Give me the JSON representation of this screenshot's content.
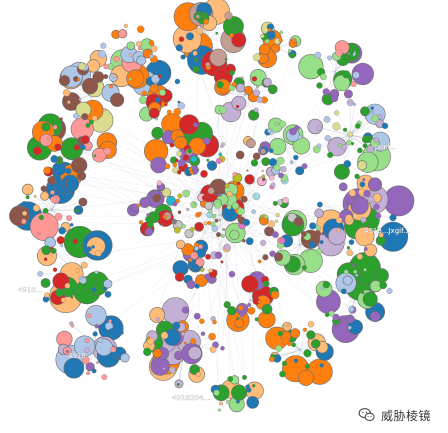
{
  "graph": {
    "description_colors": {
      "palette": [
        "#1f77b4",
        "#aec7e8",
        "#ff7f0e",
        "#ffbb78",
        "#2ca02c",
        "#98df8a",
        "#d62728",
        "#ff9896",
        "#9467bd",
        "#c5b0d5",
        "#8c564b",
        "#c49c94",
        "#e377c2",
        "#f7b6d2",
        "#7f7f7f",
        "#c7c7c7",
        "#bcbd22",
        "#dbdb8d",
        "#17becf",
        "#9edae5"
      ],
      "edge": "#9aa3b8"
    },
    "labels": [
      {
        "text": "-Jxgif...",
        "cluster": "east"
      },
      {
        "text": "4918...Jxgif...",
        "cluster": "east_lower"
      },
      {
        "text": "4918...",
        "cluster": "west"
      },
      {
        "text": "4918...",
        "cluster": "southwest"
      },
      {
        "text": "4918204...",
        "cluster": "south"
      }
    ]
  },
  "watermark": {
    "text": "威胁棱镜",
    "icon": "wechat-logo-icon"
  }
}
